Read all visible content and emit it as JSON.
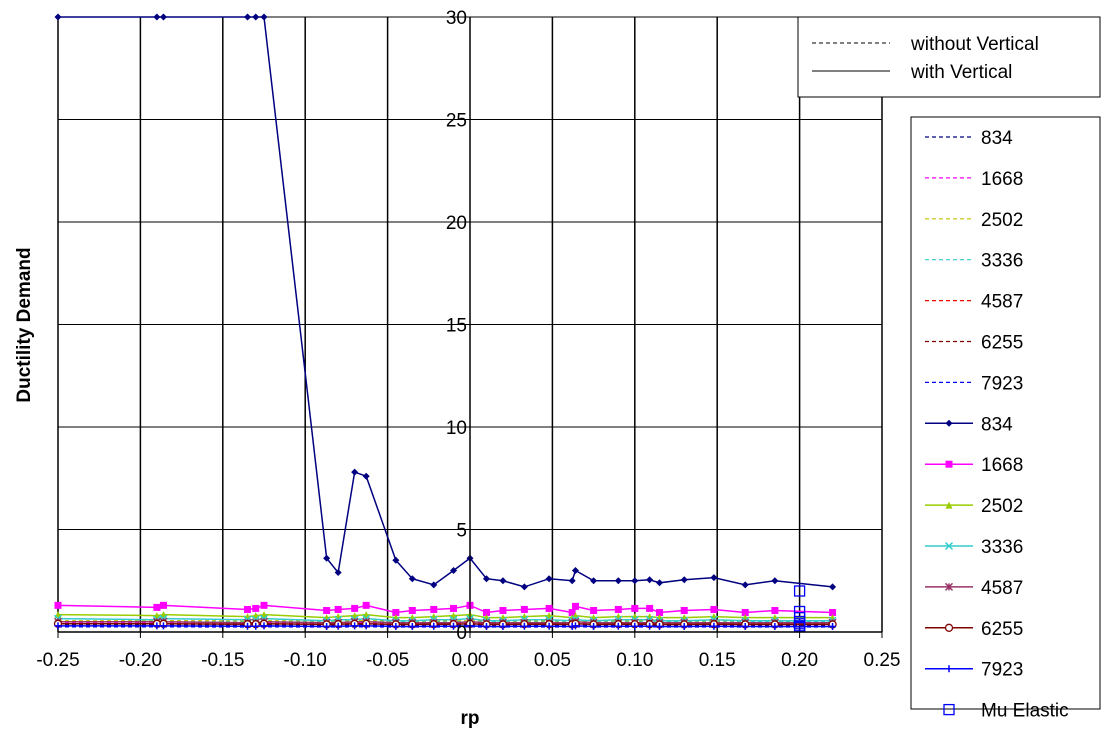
{
  "chart_data": {
    "type": "line",
    "title": "",
    "xlabel": "rp",
    "ylabel": "Ductility Demand",
    "xlim": [
      -0.25,
      0.25
    ],
    "ylim": [
      0,
      30
    ],
    "x_ticks": [
      "-0.25",
      "-0.20",
      "-0.15",
      "-0.10",
      "-0.05",
      "0.00",
      "0.05",
      "0.10",
      "0.15",
      "0.20",
      "0.25"
    ],
    "y_ticks": [
      "0",
      "5",
      "10",
      "15",
      "20",
      "25",
      "30"
    ],
    "grid": true,
    "style_legend": {
      "placement": "top-right",
      "entries": [
        {
          "label": "without Vertical",
          "dash": "dashed"
        },
        {
          "label": "with Vertical",
          "dash": "solid"
        }
      ]
    },
    "x": [
      -0.25,
      -0.19,
      -0.186,
      -0.135,
      -0.13,
      -0.125,
      -0.087,
      -0.08,
      -0.07,
      -0.063,
      -0.045,
      -0.035,
      -0.022,
      -0.01,
      0.0,
      0.01,
      0.02,
      0.033,
      0.048,
      0.062,
      0.064,
      0.075,
      0.09,
      0.1,
      0.109,
      0.115,
      0.13,
      0.148,
      0.167,
      0.185,
      0.22
    ],
    "series": [
      {
        "name": "834",
        "color": "#000080",
        "dash": "dashed",
        "marker": "none",
        "values": [
          0.35,
          0.35,
          0.35,
          0.34,
          0.34,
          0.35,
          0.34,
          0.34,
          0.35,
          0.35,
          0.34,
          0.34,
          0.34,
          0.34,
          0.35,
          0.34,
          0.34,
          0.34,
          0.34,
          0.34,
          0.35,
          0.34,
          0.34,
          0.34,
          0.35,
          0.34,
          0.34,
          0.34,
          0.34,
          0.34,
          0.34
        ]
      },
      {
        "name": "1668",
        "color": "#ff00ff",
        "dash": "dashed",
        "marker": "none",
        "values": [
          0.45,
          0.45,
          0.46,
          0.44,
          0.44,
          0.45,
          0.44,
          0.44,
          0.45,
          0.46,
          0.44,
          0.44,
          0.44,
          0.44,
          0.45,
          0.44,
          0.44,
          0.44,
          0.44,
          0.44,
          0.45,
          0.44,
          0.44,
          0.44,
          0.45,
          0.44,
          0.44,
          0.44,
          0.44,
          0.44,
          0.44
        ]
      },
      {
        "name": "2502",
        "color": "#c0c000",
        "dash": "dashed",
        "marker": "none",
        "values": [
          0.55,
          0.55,
          0.56,
          0.54,
          0.54,
          0.55,
          0.54,
          0.54,
          0.55,
          0.56,
          0.54,
          0.54,
          0.54,
          0.54,
          0.55,
          0.54,
          0.54,
          0.54,
          0.54,
          0.54,
          0.55,
          0.54,
          0.54,
          0.54,
          0.55,
          0.54,
          0.54,
          0.54,
          0.54,
          0.54,
          0.54
        ]
      },
      {
        "name": "3336",
        "color": "#33cccc",
        "dash": "dashed",
        "marker": "none",
        "values": [
          0.5,
          0.5,
          0.5,
          0.49,
          0.49,
          0.5,
          0.49,
          0.49,
          0.5,
          0.5,
          0.49,
          0.49,
          0.49,
          0.49,
          0.5,
          0.49,
          0.49,
          0.49,
          0.49,
          0.49,
          0.5,
          0.49,
          0.49,
          0.49,
          0.5,
          0.49,
          0.49,
          0.49,
          0.49,
          0.49,
          0.49
        ]
      },
      {
        "name": "4587",
        "color": "#ff0000",
        "dash": "dashed",
        "marker": "none",
        "values": [
          0.4,
          0.4,
          0.4,
          0.39,
          0.39,
          0.4,
          0.39,
          0.39,
          0.4,
          0.4,
          0.39,
          0.39,
          0.39,
          0.39,
          0.4,
          0.39,
          0.39,
          0.39,
          0.39,
          0.39,
          0.4,
          0.39,
          0.39,
          0.39,
          0.4,
          0.39,
          0.39,
          0.39,
          0.39,
          0.39,
          0.39
        ]
      },
      {
        "name": "6255",
        "color": "#800000",
        "dash": "dashed",
        "marker": "none",
        "values": [
          0.3,
          0.3,
          0.3,
          0.29,
          0.29,
          0.3,
          0.29,
          0.29,
          0.3,
          0.3,
          0.29,
          0.29,
          0.29,
          0.29,
          0.3,
          0.29,
          0.29,
          0.29,
          0.29,
          0.29,
          0.3,
          0.29,
          0.29,
          0.29,
          0.3,
          0.29,
          0.29,
          0.29,
          0.29,
          0.29,
          0.29
        ]
      },
      {
        "name": "7923",
        "color": "#0000ff",
        "dash": "dashed",
        "marker": "none",
        "values": [
          0.25,
          0.25,
          0.25,
          0.24,
          0.24,
          0.25,
          0.24,
          0.24,
          0.25,
          0.25,
          0.24,
          0.24,
          0.24,
          0.24,
          0.25,
          0.24,
          0.24,
          0.24,
          0.24,
          0.24,
          0.25,
          0.24,
          0.24,
          0.24,
          0.25,
          0.24,
          0.24,
          0.24,
          0.24,
          0.24,
          0.24
        ]
      },
      {
        "name": "834",
        "color": "#000080",
        "dash": "solid",
        "marker": "diamond",
        "values": [
          30,
          30,
          30,
          30,
          30,
          30,
          3.6,
          2.9,
          7.8,
          7.6,
          3.5,
          2.6,
          2.3,
          3.0,
          3.6,
          2.6,
          2.5,
          2.2,
          2.6,
          2.5,
          3.0,
          2.5,
          2.5,
          2.5,
          2.55,
          2.4,
          2.55,
          2.65,
          2.3,
          2.5,
          2.2
        ]
      },
      {
        "name": "1668",
        "color": "#ff00ff",
        "dash": "solid",
        "marker": "square",
        "values": [
          1.3,
          1.2,
          1.3,
          1.1,
          1.15,
          1.3,
          1.05,
          1.1,
          1.15,
          1.3,
          0.95,
          1.05,
          1.1,
          1.15,
          1.3,
          0.95,
          1.05,
          1.1,
          1.15,
          0.95,
          1.25,
          1.05,
          1.1,
          1.15,
          1.15,
          0.95,
          1.05,
          1.1,
          0.95,
          1.05,
          0.95
        ]
      },
      {
        "name": "2502",
        "color": "#99cc00",
        "dash": "solid",
        "marker": "triangle",
        "values": [
          0.85,
          0.8,
          0.85,
          0.75,
          0.8,
          0.85,
          0.7,
          0.75,
          0.8,
          0.85,
          0.7,
          0.7,
          0.75,
          0.8,
          0.85,
          0.7,
          0.7,
          0.75,
          0.8,
          0.7,
          0.8,
          0.7,
          0.75,
          0.75,
          0.75,
          0.7,
          0.7,
          0.75,
          0.7,
          0.7,
          0.7
        ]
      },
      {
        "name": "3336",
        "color": "#33cccc",
        "dash": "solid",
        "marker": "x",
        "values": [
          0.65,
          0.6,
          0.65,
          0.6,
          0.6,
          0.65,
          0.55,
          0.6,
          0.6,
          0.65,
          0.55,
          0.55,
          0.6,
          0.6,
          0.65,
          0.55,
          0.55,
          0.6,
          0.6,
          0.55,
          0.6,
          0.55,
          0.6,
          0.6,
          0.6,
          0.55,
          0.55,
          0.6,
          0.55,
          0.55,
          0.55
        ]
      },
      {
        "name": "4587",
        "color": "#993366",
        "dash": "solid",
        "marker": "star",
        "values": [
          0.5,
          0.5,
          0.5,
          0.45,
          0.45,
          0.5,
          0.45,
          0.45,
          0.5,
          0.5,
          0.45,
          0.45,
          0.45,
          0.45,
          0.5,
          0.45,
          0.45,
          0.45,
          0.45,
          0.45,
          0.5,
          0.45,
          0.45,
          0.45,
          0.45,
          0.45,
          0.45,
          0.45,
          0.45,
          0.45,
          0.45
        ]
      },
      {
        "name": "6255",
        "color": "#800000",
        "dash": "solid",
        "marker": "circle",
        "values": [
          0.4,
          0.4,
          0.4,
          0.38,
          0.38,
          0.4,
          0.37,
          0.38,
          0.4,
          0.4,
          0.37,
          0.37,
          0.38,
          0.38,
          0.4,
          0.37,
          0.37,
          0.38,
          0.38,
          0.37,
          0.4,
          0.37,
          0.38,
          0.38,
          0.38,
          0.37,
          0.37,
          0.38,
          0.37,
          0.37,
          0.37
        ]
      },
      {
        "name": "7923",
        "color": "#0000ff",
        "dash": "solid",
        "marker": "plus",
        "values": [
          0.3,
          0.3,
          0.3,
          0.28,
          0.28,
          0.3,
          0.27,
          0.28,
          0.3,
          0.3,
          0.27,
          0.27,
          0.28,
          0.28,
          0.3,
          0.27,
          0.27,
          0.28,
          0.28,
          0.27,
          0.3,
          0.27,
          0.28,
          0.28,
          0.28,
          0.27,
          0.27,
          0.28,
          0.27,
          0.27,
          0.27
        ]
      }
    ],
    "scatter_series": {
      "name": "Mu Elastic",
      "color": "#0000ff",
      "marker": "open-square",
      "x": [
        0.2,
        0.2,
        0.2,
        0.2,
        0.2,
        0.2,
        0.2
      ],
      "y": [
        2.0,
        1.0,
        0.7,
        0.5,
        0.4,
        0.3,
        0.25
      ]
    },
    "legend_placement": "right"
  }
}
